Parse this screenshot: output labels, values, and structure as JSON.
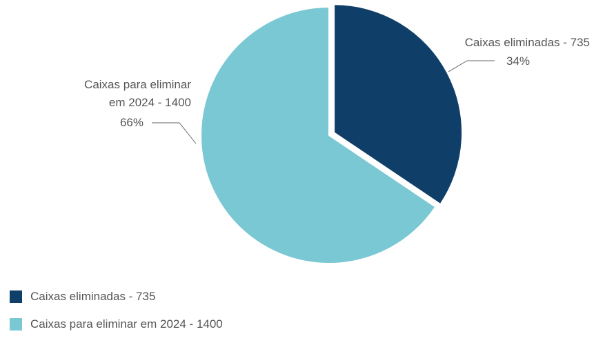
{
  "chart_data": {
    "type": "pie",
    "categories": [
      "Caixas eliminadas - 735",
      "Caixas para eliminar em 2024 - 1400"
    ],
    "values": [
      735,
      1400
    ],
    "percent_labels": [
      "34%",
      "66%"
    ],
    "slice_label_lines": [
      [
        "Caixas eliminadas - 735",
        "34%"
      ],
      [
        "Caixas para eliminar",
        "em 2024 - 1400",
        "66%"
      ]
    ],
    "colors": [
      "#0f3f68",
      "#7ac8d3"
    ],
    "exploded_slice": 0,
    "legend_position": "bottom-left",
    "title": ""
  },
  "legend": {
    "items": [
      {
        "label": "Caixas eliminadas - 735",
        "color": "#0f3f68"
      },
      {
        "label": "Caixas para eliminar em 2024 - 1400",
        "color": "#7ac8d3"
      }
    ]
  }
}
